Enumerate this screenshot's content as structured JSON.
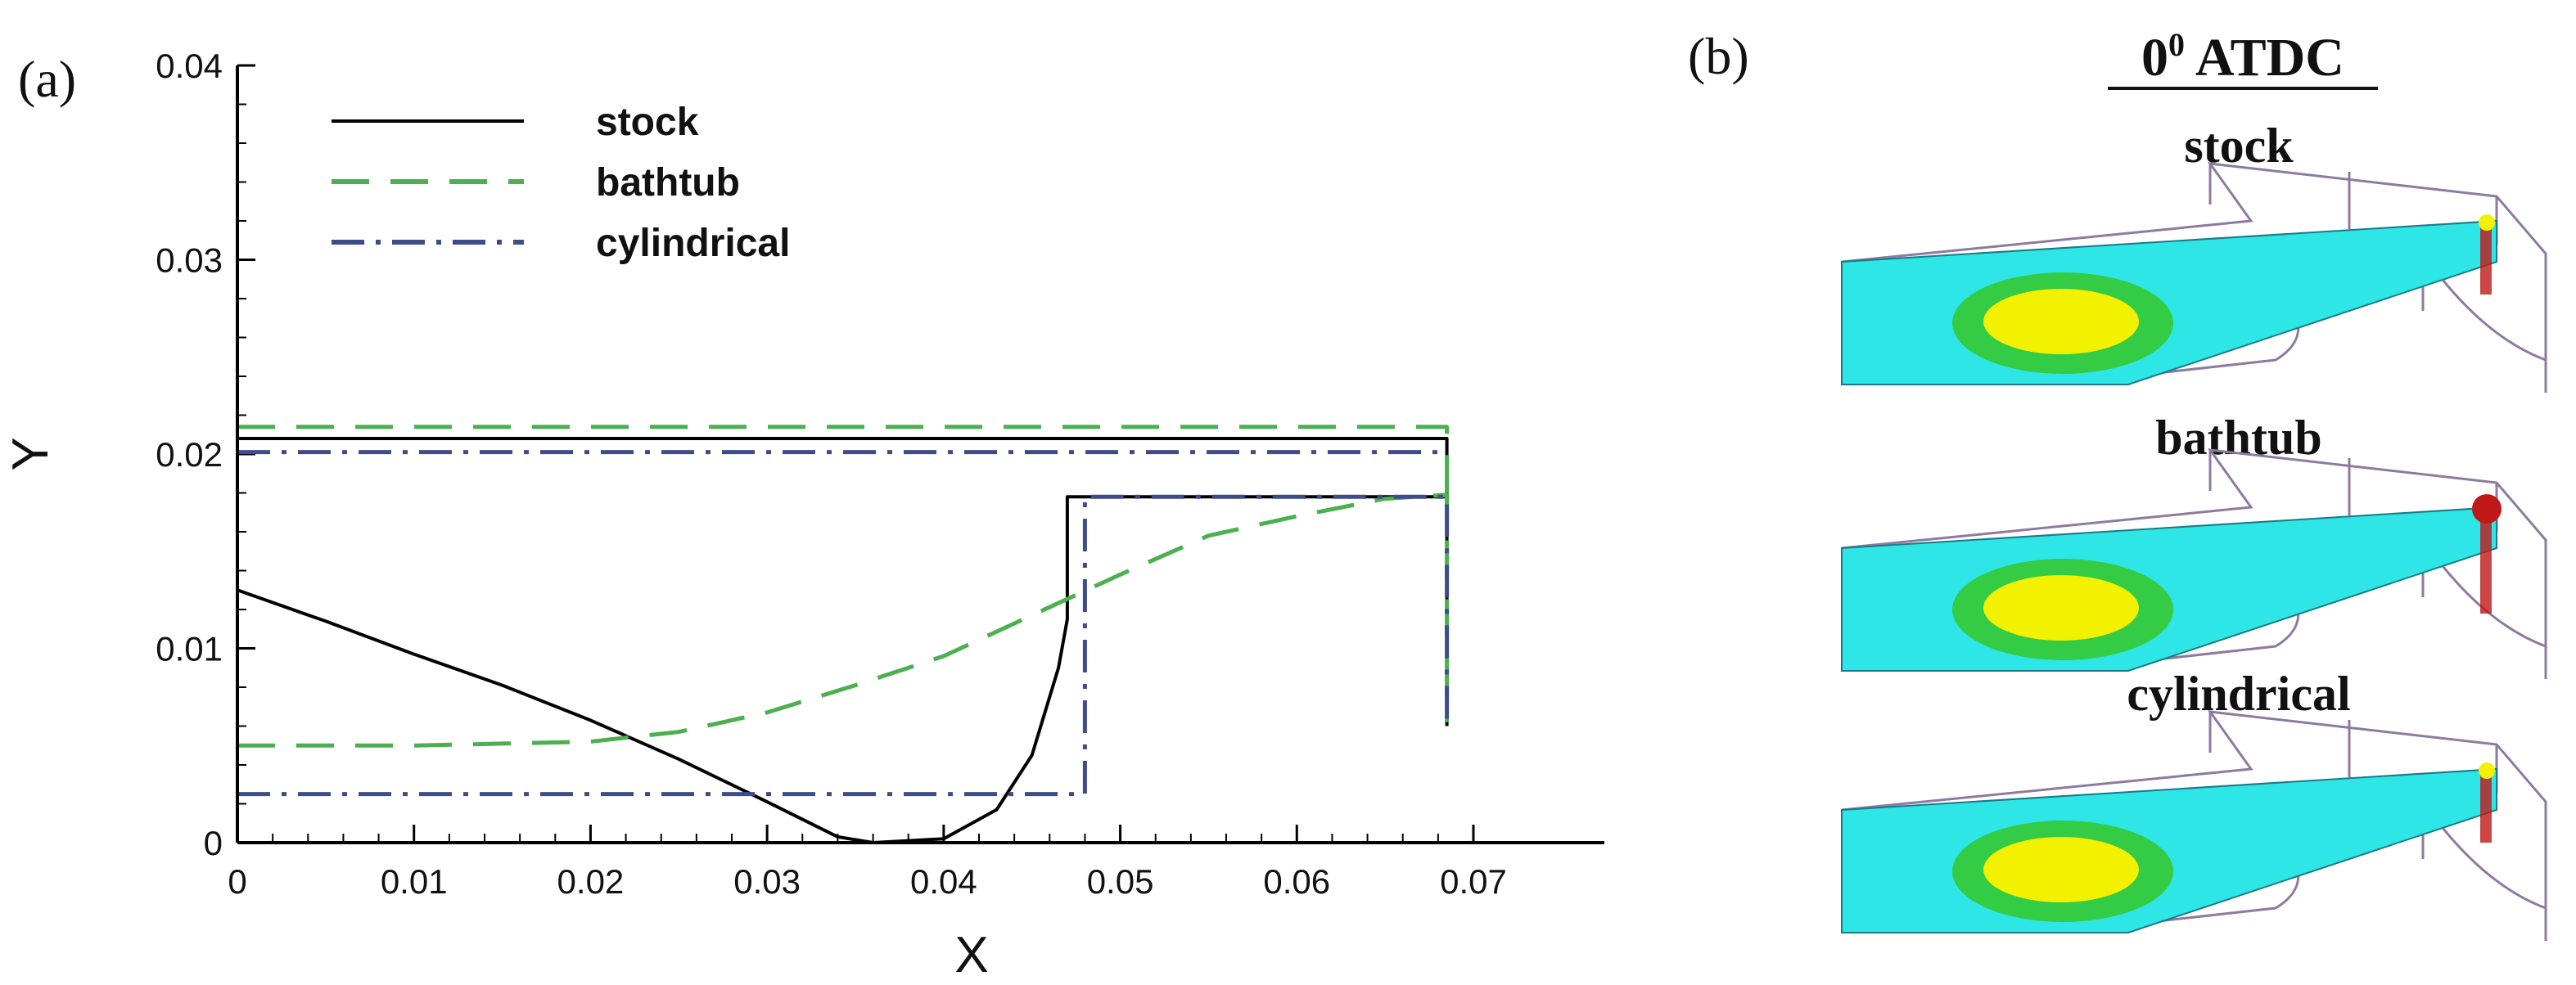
{
  "panel_a": {
    "tag": "(a)"
  },
  "panel_b": {
    "tag": "(b)",
    "title_base": "0",
    "title_sup": "0",
    "title_rest": " ATDC",
    "cases": [
      {
        "label": "stock"
      },
      {
        "label": "bathtub"
      },
      {
        "label": "cylindrical"
      }
    ],
    "colors": {
      "field": "#2ee6e6",
      "mid": "#33cc44",
      "core": "#f2f200",
      "hot": "#c01818",
      "frame": "#8e7a9e"
    }
  },
  "chart_data": {
    "type": "line",
    "xlabel": "X",
    "ylabel": "Y",
    "xlim": [
      0,
      0.07
    ],
    "ylim": [
      0,
      0.04
    ],
    "xticks": [
      "0",
      "0.01",
      "0.02",
      "0.03",
      "0.04",
      "0.05",
      "0.06",
      "0.07"
    ],
    "yticks": [
      "0",
      "0.01",
      "0.02",
      "0.03",
      "0.04"
    ],
    "legend_position": "top-left",
    "series": [
      {
        "name": "stock",
        "color": "#000000",
        "style": "solid",
        "x": [
          0.0,
          0.005,
          0.01,
          0.015,
          0.02,
          0.025,
          0.03,
          0.034,
          0.036,
          0.04,
          0.043,
          0.045,
          0.0465,
          0.047,
          0.047,
          0.0685,
          0.0685
        ],
        "y": [
          0.013,
          0.0114,
          0.0097,
          0.0081,
          0.0063,
          0.0043,
          0.0021,
          0.0003,
          0.0,
          0.0002,
          0.0017,
          0.0045,
          0.009,
          0.0115,
          0.0178,
          0.0178,
          0.006
        ]
      },
      {
        "name": "stock-top",
        "color": "#000000",
        "style": "solid",
        "x": [
          0.0,
          0.0685,
          0.0685
        ],
        "y": [
          0.0208,
          0.0208,
          0.0178
        ]
      },
      {
        "name": "bathtub",
        "color": "#4caf50",
        "style": "dashed",
        "x": [
          0.0,
          0.01,
          0.02,
          0.025,
          0.03,
          0.035,
          0.04,
          0.045,
          0.05,
          0.055,
          0.06,
          0.065,
          0.0685,
          0.0685
        ],
        "y": [
          0.005,
          0.005,
          0.0052,
          0.0057,
          0.0067,
          0.0081,
          0.0096,
          0.0117,
          0.0138,
          0.0158,
          0.0168,
          0.0177,
          0.0179,
          0.0062
        ]
      },
      {
        "name": "bathtub-top",
        "color": "#4caf50",
        "style": "dashed",
        "x": [
          0.0,
          0.0685,
          0.0685
        ],
        "y": [
          0.0214,
          0.0214,
          0.0179
        ]
      },
      {
        "name": "cylindrical",
        "color": "#3f4c8c",
        "style": "dashdot",
        "x": [
          0.0,
          0.048,
          0.048,
          0.0685,
          0.0685
        ],
        "y": [
          0.0025,
          0.0025,
          0.0178,
          0.0178,
          0.006
        ]
      },
      {
        "name": "cylindrical-top",
        "color": "#3f4c8c",
        "style": "dashdot",
        "x": [
          0.0,
          0.0685
        ],
        "y": [
          0.0201,
          0.0201
        ]
      }
    ],
    "legend": [
      {
        "label": "stock",
        "color": "#000000",
        "style": "solid"
      },
      {
        "label": "bathtub",
        "color": "#4caf50",
        "style": "dashed"
      },
      {
        "label": "cylindrical",
        "color": "#3f4c8c",
        "style": "dashdot"
      }
    ]
  }
}
